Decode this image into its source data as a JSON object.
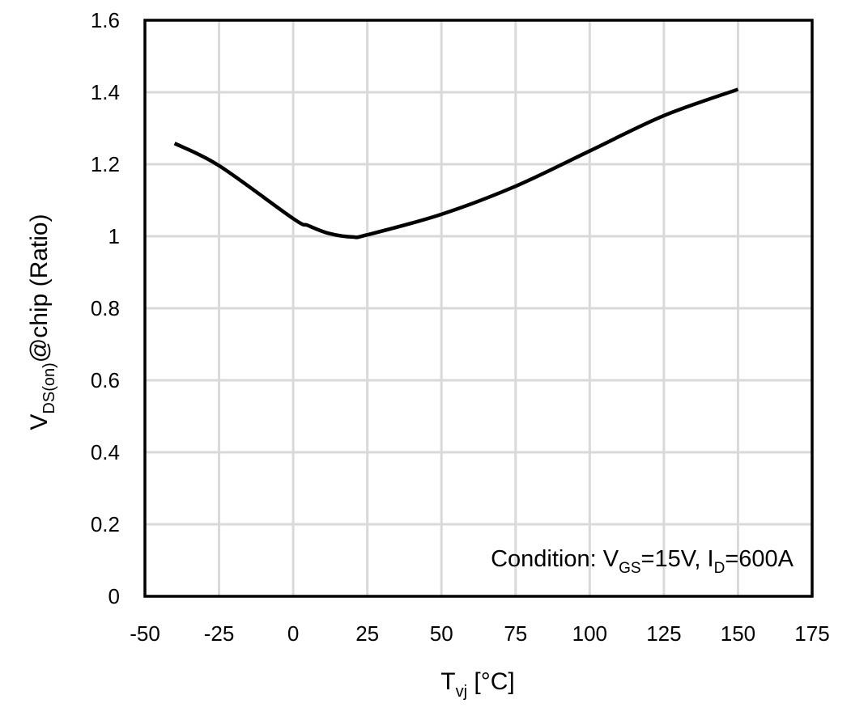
{
  "chart_data": {
    "type": "line",
    "title": "",
    "xlabel": {
      "main": "T",
      "sub": "vj",
      "rest": " [°C]"
    },
    "ylabel": {
      "main": "V",
      "sub": "DS(on)",
      "rest": "@chip (Ratio)"
    },
    "xlim": [
      -50,
      175
    ],
    "ylim": [
      0,
      1.6
    ],
    "xticks": [
      "-50",
      "-25",
      "0",
      "25",
      "50",
      "75",
      "100",
      "125",
      "150",
      "175"
    ],
    "yticks": [
      "0",
      "0.2",
      "0.4",
      "0.6",
      "0.8",
      "1",
      "1.2",
      "1.4",
      "1.6"
    ],
    "grid": true,
    "annotation": {
      "prefix": "Condition: V",
      "sub1": "GS",
      "mid": "=15V, I",
      "sub2": "D",
      "suffix": "=600A"
    },
    "series": [
      {
        "color": "#000000",
        "x": [
          -40,
          -25,
          0,
          5,
          12,
          20,
          25,
          50,
          75,
          100,
          125,
          150
        ],
        "y": [
          1.258,
          1.196,
          1.049,
          1.03,
          1.008,
          0.998,
          1.004,
          1.061,
          1.139,
          1.237,
          1.335,
          1.408
        ]
      }
    ]
  }
}
